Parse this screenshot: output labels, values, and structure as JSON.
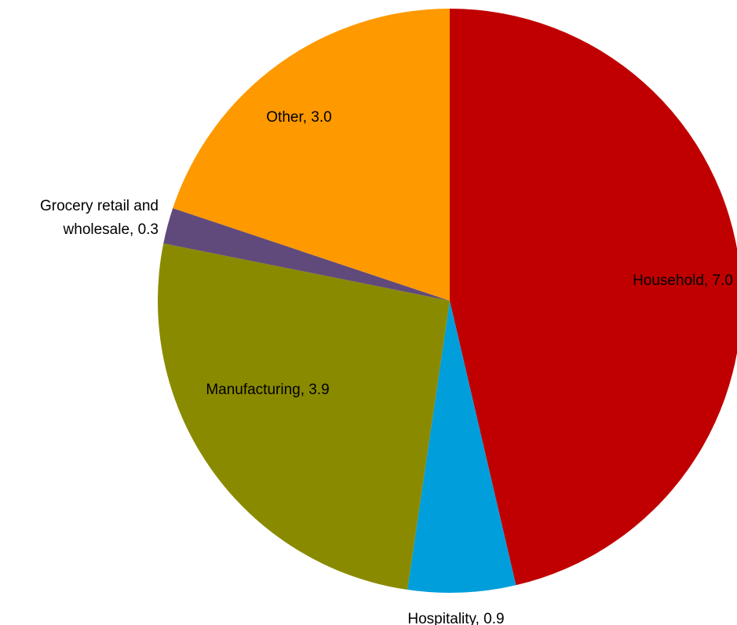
{
  "chart_data": {
    "type": "pie",
    "title": "",
    "slices": [
      {
        "label": "Household, 7.0",
        "category": "Household",
        "value": 7.0,
        "color": "#C00000"
      },
      {
        "label": "Hospitality, 0.9",
        "category": "Hospitality",
        "value": 0.9,
        "color": "#009EDB"
      },
      {
        "label": "Manufacturing, 3.9",
        "category": "Manufacturing",
        "value": 3.9,
        "color": "#8A8A00"
      },
      {
        "label": "Grocery retail and wholesale, 0.3",
        "category": "Grocery retail and wholesale",
        "value": 0.3,
        "color": "#604A7B"
      },
      {
        "label": "Other, 3.0",
        "category": "Other",
        "value": 3.0,
        "color": "#FF9900"
      }
    ],
    "start_angle_deg": 0,
    "direction": "clockwise",
    "legend": "none",
    "data_labels": "category and value"
  }
}
